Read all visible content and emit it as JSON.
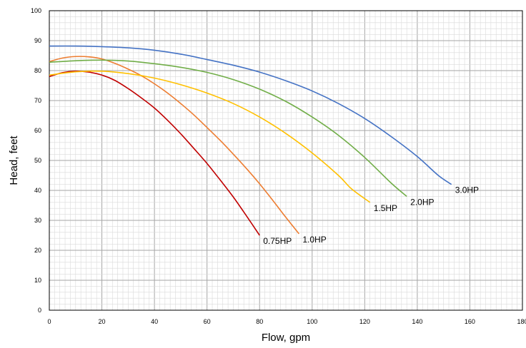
{
  "chart_data": {
    "type": "line",
    "title": "",
    "xlabel": "Flow, gpm",
    "ylabel": "Head, feet",
    "xlim": [
      0,
      180
    ],
    "ylim": [
      0,
      100
    ],
    "x_ticks": [
      0,
      20,
      40,
      60,
      80,
      100,
      120,
      140,
      160,
      180
    ],
    "y_ticks": [
      0,
      10,
      20,
      30,
      40,
      50,
      60,
      70,
      80,
      90,
      100
    ],
    "grid": true,
    "legend": "none",
    "series": [
      {
        "name": "0.75HP",
        "color": "#c00000",
        "points": [
          [
            0,
            78
          ],
          [
            5,
            79.3
          ],
          [
            10,
            79.8
          ],
          [
            15,
            79.5
          ],
          [
            20,
            78.5
          ],
          [
            25,
            76.7
          ],
          [
            30,
            74
          ],
          [
            35,
            70.9
          ],
          [
            40,
            67.5
          ],
          [
            45,
            63.4
          ],
          [
            50,
            58.9
          ],
          [
            55,
            54
          ],
          [
            60,
            49
          ],
          [
            65,
            43.5
          ],
          [
            70,
            37.8
          ],
          [
            75,
            31.5
          ],
          [
            80,
            25
          ]
        ]
      },
      {
        "name": "1.0HP",
        "color": "#ed7d31",
        "points": [
          [
            0,
            83
          ],
          [
            5,
            84.2
          ],
          [
            10,
            84.7
          ],
          [
            15,
            84.6
          ],
          [
            20,
            83.9
          ],
          [
            25,
            82.4
          ],
          [
            30,
            80.5
          ],
          [
            35,
            78.3
          ],
          [
            40,
            75.6
          ],
          [
            45,
            72.5
          ],
          [
            50,
            69
          ],
          [
            55,
            65.2
          ],
          [
            60,
            61
          ],
          [
            65,
            56.7
          ],
          [
            70,
            52.1
          ],
          [
            75,
            47.3
          ],
          [
            80,
            42.2
          ],
          [
            85,
            36.7
          ],
          [
            90,
            31
          ],
          [
            95,
            25.5
          ]
        ]
      },
      {
        "name": "1.5HP",
        "color": "#ffc000",
        "points": [
          [
            0,
            78.5
          ],
          [
            10,
            79.6
          ],
          [
            20,
            79.8
          ],
          [
            30,
            79
          ],
          [
            40,
            77.5
          ],
          [
            50,
            75.3
          ],
          [
            60,
            72.5
          ],
          [
            70,
            69
          ],
          [
            80,
            64.5
          ],
          [
            90,
            59
          ],
          [
            100,
            52.5
          ],
          [
            110,
            45
          ],
          [
            115,
            40.5
          ],
          [
            122,
            36
          ]
        ]
      },
      {
        "name": "2.0HP",
        "color": "#70ad47",
        "points": [
          [
            0,
            82.8
          ],
          [
            10,
            83.3
          ],
          [
            20,
            83.5
          ],
          [
            30,
            83.2
          ],
          [
            40,
            82.3
          ],
          [
            50,
            81.1
          ],
          [
            60,
            79.4
          ],
          [
            70,
            77
          ],
          [
            80,
            73.8
          ],
          [
            90,
            69.7
          ],
          [
            100,
            64.5
          ],
          [
            110,
            58.4
          ],
          [
            120,
            51
          ],
          [
            130,
            42.5
          ],
          [
            136,
            38
          ]
        ]
      },
      {
        "name": "3.0HP",
        "color": "#4472c4",
        "points": [
          [
            0,
            88.2
          ],
          [
            10,
            88.2
          ],
          [
            20,
            88
          ],
          [
            30,
            87.6
          ],
          [
            40,
            86.8
          ],
          [
            50,
            85.5
          ],
          [
            60,
            83.7
          ],
          [
            70,
            81.8
          ],
          [
            80,
            79.5
          ],
          [
            90,
            76.6
          ],
          [
            100,
            73.2
          ],
          [
            110,
            69
          ],
          [
            120,
            64
          ],
          [
            130,
            58
          ],
          [
            140,
            51.3
          ],
          [
            148,
            45
          ],
          [
            153,
            42
          ]
        ]
      }
    ],
    "labels": [
      {
        "text": "0.75HP",
        "x": 80,
        "y": 25
      },
      {
        "text": "1.0HP",
        "x": 95,
        "y": 25.5
      },
      {
        "text": "1.5HP",
        "x": 122,
        "y": 36
      },
      {
        "text": "2.0HP",
        "x": 136,
        "y": 38
      },
      {
        "text": "3.0HP",
        "x": 153,
        "y": 42
      }
    ]
  }
}
